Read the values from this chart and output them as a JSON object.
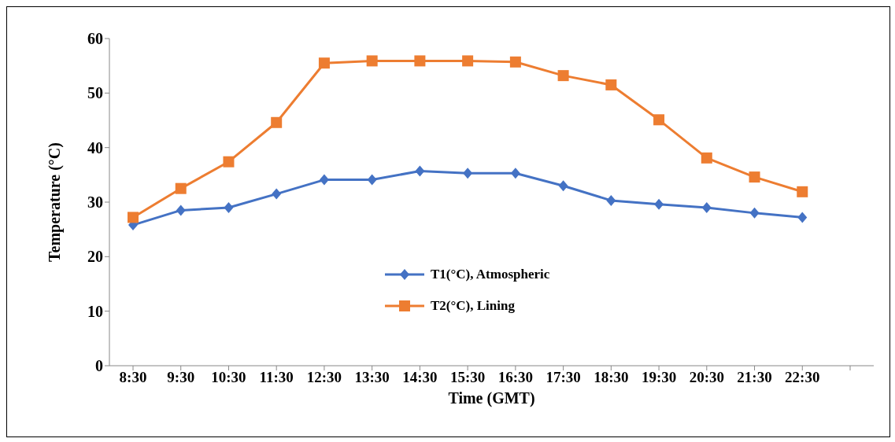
{
  "chart_data": {
    "type": "line",
    "xlabel": "Time (GMT)",
    "ylabel": "Temperature  (°C)",
    "categories": [
      "8:30",
      "9:30",
      "10:30",
      "11:30",
      "12:30",
      "13:30",
      "14:30",
      "15:30",
      "16:30",
      "17:30",
      "18:30",
      "19:30",
      "20:30",
      "21:30",
      "22:30",
      null
    ],
    "series": [
      {
        "name": "T1(°C), Atmospheric",
        "color": "#4472c4",
        "marker": "diamond",
        "values": [
          25.8,
          28.5,
          29.0,
          31.5,
          34.1,
          34.1,
          35.7,
          35.3,
          35.3,
          33.0,
          30.3,
          29.6,
          29.0,
          28.0,
          27.2,
          null
        ]
      },
      {
        "name": "T2(°C), Lining",
        "color": "#ed7d31",
        "marker": "square",
        "values": [
          27.2,
          32.5,
          37.4,
          44.6,
          55.5,
          55.9,
          55.9,
          55.9,
          55.7,
          53.2,
          51.5,
          45.1,
          38.1,
          34.6,
          31.9,
          null
        ]
      }
    ],
    "ylim": [
      0,
      60
    ],
    "yticks": [
      0,
      10,
      20,
      30,
      40,
      50,
      60
    ],
    "grid": false,
    "legend": "center"
  }
}
